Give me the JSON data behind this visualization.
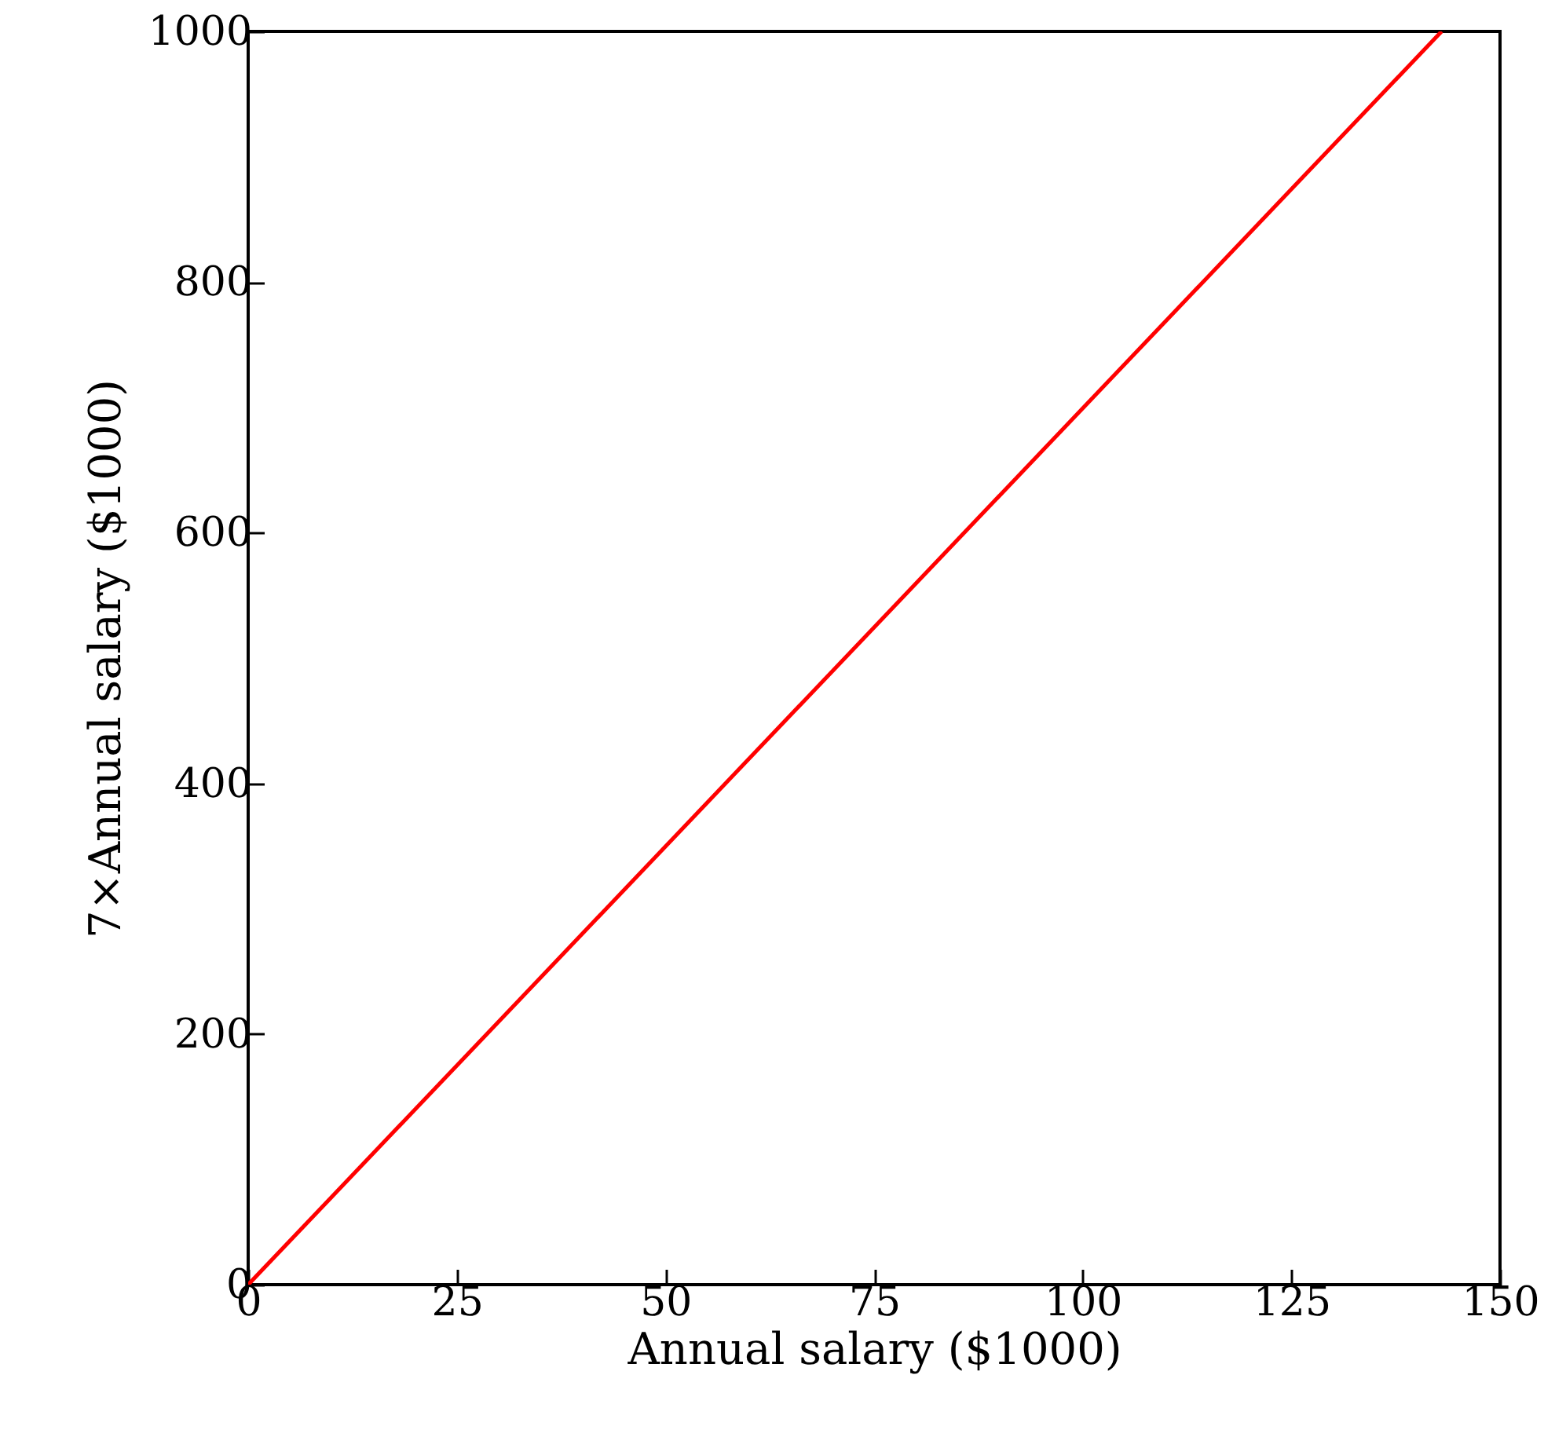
{
  "chart_data": {
    "type": "line",
    "xlabel": "Annual salary ($1000)",
    "ylabel": "7×Annual salary ($1000)",
    "x": [
      0,
      143
    ],
    "series": [
      {
        "color": "#ff0000",
        "values": [
          0,
          1000
        ]
      }
    ],
    "xlim": [
      0,
      150
    ],
    "ylim": [
      0,
      1000
    ],
    "xticks": [
      0,
      25,
      50,
      75,
      100,
      125,
      150
    ],
    "yticks": [
      0,
      200,
      400,
      600,
      800,
      1000
    ]
  }
}
